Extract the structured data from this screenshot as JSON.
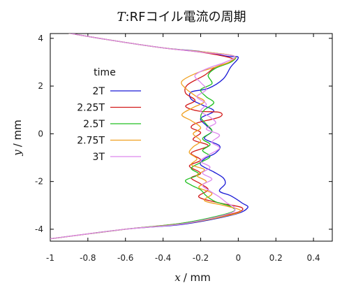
{
  "chart_data": {
    "type": "line",
    "title": {
      "var": "T",
      "rest": ":RFコイル電流の周期"
    },
    "xlabel": {
      "var": "x",
      "rest": "/ mm"
    },
    "ylabel": {
      "var": "y",
      "rest": "/ mm"
    },
    "xlim": [
      -1.0,
      0.5
    ],
    "ylim": [
      -4.5,
      4.2
    ],
    "xticks": [
      "-1",
      "-0.8",
      "-0.6",
      "-0.4",
      "-0.2",
      "0",
      "0.2",
      "0.4"
    ],
    "yticks": [
      "4",
      "2",
      "0",
      "-2",
      "-4"
    ],
    "grid": false,
    "legend_title": "time",
    "legend_position": "top-left",
    "series": [
      {
        "name": "2T",
        "color": "#1a1ad6",
        "points": [
          [
            -1.0,
            4.35
          ],
          [
            -0.7,
            3.95
          ],
          [
            -0.4,
            3.6
          ],
          [
            -0.2,
            3.45
          ],
          [
            -0.06,
            3.25
          ],
          [
            0.0,
            3.2
          ],
          [
            -0.04,
            2.8
          ],
          [
            -0.08,
            2.3
          ],
          [
            -0.16,
            1.9
          ],
          [
            -0.25,
            1.75
          ],
          [
            -0.25,
            1.45
          ],
          [
            -0.19,
            1.2
          ],
          [
            -0.13,
            0.95
          ],
          [
            -0.2,
            0.65
          ],
          [
            -0.17,
            0.35
          ],
          [
            -0.14,
            0.1
          ],
          [
            -0.18,
            -0.2
          ],
          [
            -0.1,
            -0.5
          ],
          [
            -0.12,
            -0.8
          ],
          [
            -0.18,
            -1.05
          ],
          [
            -0.2,
            -1.3
          ],
          [
            -0.13,
            -1.6
          ],
          [
            -0.08,
            -1.85
          ],
          [
            -0.07,
            -2.1
          ],
          [
            -0.1,
            -2.4
          ],
          [
            -0.04,
            -2.6
          ],
          [
            0.02,
            -2.9
          ],
          [
            0.05,
            -3.1
          ],
          [
            -0.03,
            -3.4
          ],
          [
            -0.3,
            -3.8
          ],
          [
            -0.6,
            -4.0
          ],
          [
            -1.0,
            -4.4
          ]
        ]
      },
      {
        "name": "2.25T",
        "color": "#d21a1a",
        "points": [
          [
            -1.0,
            4.35
          ],
          [
            -0.7,
            3.95
          ],
          [
            -0.4,
            3.6
          ],
          [
            -0.2,
            3.42
          ],
          [
            -0.05,
            3.2
          ],
          [
            -0.03,
            3.05
          ],
          [
            -0.12,
            2.8
          ],
          [
            -0.18,
            2.45
          ],
          [
            -0.27,
            2.05
          ],
          [
            -0.28,
            1.7
          ],
          [
            -0.23,
            1.4
          ],
          [
            -0.28,
            1.15
          ],
          [
            -0.21,
            0.95
          ],
          [
            -0.1,
            0.9
          ],
          [
            -0.1,
            0.7
          ],
          [
            -0.22,
            0.45
          ],
          [
            -0.25,
            0.25
          ],
          [
            -0.2,
            0.05
          ],
          [
            -0.24,
            -0.25
          ],
          [
            -0.16,
            -0.5
          ],
          [
            -0.25,
            -0.8
          ],
          [
            -0.2,
            -1.1
          ],
          [
            -0.26,
            -1.35
          ],
          [
            -0.2,
            -1.65
          ],
          [
            -0.25,
            -1.85
          ],
          [
            -0.2,
            -2.1
          ],
          [
            -0.16,
            -2.35
          ],
          [
            -0.21,
            -2.65
          ],
          [
            -0.1,
            -2.9
          ],
          [
            0.02,
            -3.1
          ],
          [
            -0.03,
            -3.35
          ],
          [
            -0.3,
            -3.75
          ],
          [
            -0.6,
            -4.0
          ],
          [
            -1.0,
            -4.4
          ]
        ]
      },
      {
        "name": "2.5T",
        "color": "#20c020",
        "points": [
          [
            -1.0,
            4.35
          ],
          [
            -0.7,
            3.95
          ],
          [
            -0.4,
            3.6
          ],
          [
            -0.15,
            3.4
          ],
          [
            -0.02,
            3.25
          ],
          [
            -0.04,
            3.0
          ],
          [
            -0.12,
            2.75
          ],
          [
            -0.16,
            2.45
          ],
          [
            -0.14,
            2.1
          ],
          [
            -0.2,
            1.85
          ],
          [
            -0.17,
            1.55
          ],
          [
            -0.13,
            1.3
          ],
          [
            -0.18,
            1.0
          ],
          [
            -0.2,
            0.7
          ],
          [
            -0.17,
            0.4
          ],
          [
            -0.14,
            0.1
          ],
          [
            -0.19,
            -0.2
          ],
          [
            -0.15,
            -0.45
          ],
          [
            -0.19,
            -0.7
          ],
          [
            -0.15,
            -0.95
          ],
          [
            -0.2,
            -1.2
          ],
          [
            -0.25,
            -1.45
          ],
          [
            -0.21,
            -1.7
          ],
          [
            -0.28,
            -1.95
          ],
          [
            -0.25,
            -2.15
          ],
          [
            -0.2,
            -2.35
          ],
          [
            -0.17,
            -2.6
          ],
          [
            -0.12,
            -2.85
          ],
          [
            -0.04,
            -3.05
          ],
          [
            -0.04,
            -3.3
          ],
          [
            -0.3,
            -3.75
          ],
          [
            -0.6,
            -4.0
          ],
          [
            -1.0,
            -4.4
          ]
        ]
      },
      {
        "name": "2.75T",
        "color": "#f0a020",
        "points": [
          [
            -1.0,
            4.35
          ],
          [
            -0.7,
            3.95
          ],
          [
            -0.4,
            3.6
          ],
          [
            -0.15,
            3.4
          ],
          [
            -0.02,
            3.25
          ],
          [
            -0.05,
            3.0
          ],
          [
            -0.12,
            2.8
          ],
          [
            -0.22,
            2.55
          ],
          [
            -0.3,
            2.2
          ],
          [
            -0.28,
            1.9
          ],
          [
            -0.23,
            1.6
          ],
          [
            -0.18,
            1.35
          ],
          [
            -0.24,
            1.1
          ],
          [
            -0.3,
            0.8
          ],
          [
            -0.25,
            0.55
          ],
          [
            -0.2,
            0.25
          ],
          [
            -0.24,
            0.0
          ],
          [
            -0.2,
            -0.3
          ],
          [
            -0.24,
            -0.55
          ],
          [
            -0.26,
            -0.8
          ],
          [
            -0.22,
            -1.05
          ],
          [
            -0.25,
            -1.3
          ],
          [
            -0.18,
            -1.5
          ],
          [
            -0.22,
            -1.75
          ],
          [
            -0.17,
            -2.0
          ],
          [
            -0.21,
            -2.25
          ],
          [
            -0.14,
            -2.5
          ],
          [
            -0.18,
            -2.8
          ],
          [
            -0.08,
            -3.0
          ],
          [
            0.01,
            -3.2
          ],
          [
            -0.04,
            -3.4
          ],
          [
            -0.3,
            -3.78
          ],
          [
            -0.6,
            -4.0
          ],
          [
            -1.0,
            -4.4
          ]
        ]
      },
      {
        "name": "3T",
        "color": "#dd88ee",
        "points": [
          [
            -1.0,
            4.35
          ],
          [
            -0.7,
            3.95
          ],
          [
            -0.4,
            3.6
          ],
          [
            -0.17,
            3.4
          ],
          [
            -0.02,
            3.25
          ],
          [
            -0.07,
            3.0
          ],
          [
            -0.16,
            2.75
          ],
          [
            -0.23,
            2.45
          ],
          [
            -0.2,
            2.15
          ],
          [
            -0.17,
            1.85
          ],
          [
            -0.22,
            1.55
          ],
          [
            -0.17,
            1.25
          ],
          [
            -0.2,
            0.95
          ],
          [
            -0.15,
            0.7
          ],
          [
            -0.12,
            0.45
          ],
          [
            -0.17,
            0.2
          ],
          [
            -0.1,
            -0.05
          ],
          [
            -0.14,
            -0.35
          ],
          [
            -0.1,
            -0.6
          ],
          [
            -0.16,
            -0.9
          ],
          [
            -0.2,
            -1.15
          ],
          [
            -0.15,
            -1.4
          ],
          [
            -0.19,
            -1.65
          ],
          [
            -0.14,
            -1.9
          ],
          [
            -0.19,
            -2.15
          ],
          [
            -0.15,
            -2.4
          ],
          [
            -0.1,
            -2.65
          ],
          [
            -0.06,
            -2.9
          ],
          [
            -0.02,
            -3.1
          ],
          [
            -0.05,
            -3.35
          ],
          [
            -0.3,
            -3.78
          ],
          [
            -0.6,
            -4.0
          ],
          [
            -1.0,
            -4.4
          ]
        ]
      }
    ]
  }
}
